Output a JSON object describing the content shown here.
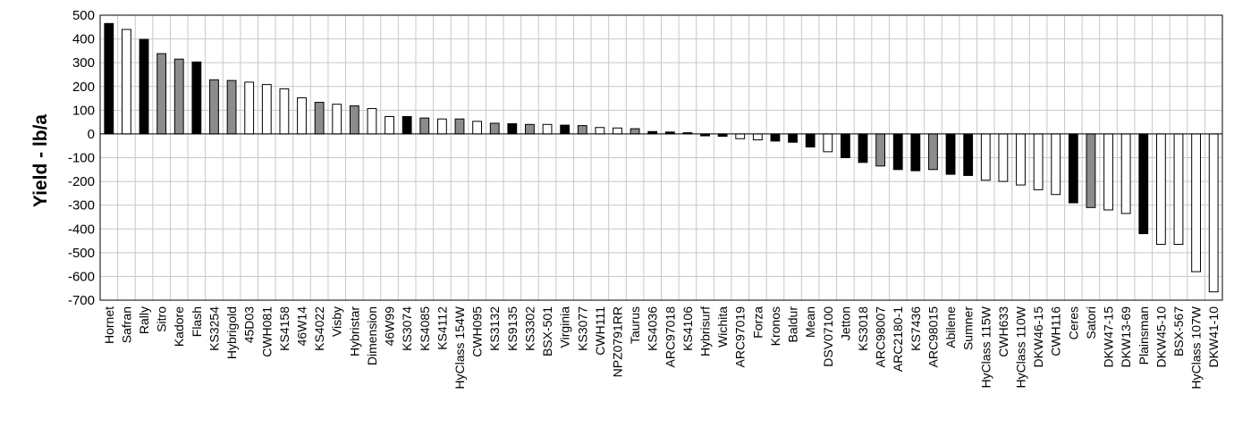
{
  "chart_data": {
    "type": "bar",
    "ylabel": "Yield - lb/a",
    "ylim": [
      -700,
      500
    ],
    "yticks": [
      500,
      400,
      300,
      200,
      100,
      0,
      -100,
      -200,
      -300,
      -400,
      -500,
      -600,
      -700
    ],
    "grid": true,
    "legend": "none",
    "colors": {
      "black": "#000000",
      "gray": "#8c8c8c",
      "white": "#ffffff",
      "edge": "#000000",
      "grid": "#c8c8c8"
    },
    "categories": [
      "Hornet",
      "Safran",
      "Rally",
      "Sitro",
      "Kadore",
      "Flash",
      "KS3254",
      "Hybrigold",
      "45D03",
      "CWH081",
      "KS4158",
      "46W14",
      "KS4022",
      "Visby",
      "Hybristar",
      "Dimension",
      "46W99",
      "KS3074",
      "KS4085",
      "KS4112",
      "HyClass 154W",
      "CWH095",
      "KS3132",
      "KS9135",
      "KS3302",
      "BSX-501",
      "Virginia",
      "KS3077",
      "CWH111",
      "NPZ0791RR",
      "Taurus",
      "KS4036",
      "ARC97018",
      "KS4106",
      "Hybrisurf",
      "Wichita",
      "ARC97019",
      "Forza",
      "Kronos",
      "Baldur",
      "Mean",
      "DSV07100",
      "Jetton",
      "KS3018",
      "ARC98007",
      "ARC2180-1",
      "KS7436",
      "ARC98015",
      "Abilene",
      "Sumner",
      "HyClass 115W",
      "CWH633",
      "HyClass 110W",
      "DKW46-15",
      "CWH116",
      "Ceres",
      "Satori",
      "DKW47-15",
      "DKW13-69",
      "Plainsman",
      "DKW45-10",
      "BSX-567",
      "HyClass 107W",
      "DKW41-10"
    ],
    "values": [
      465,
      440,
      398,
      338,
      315,
      303,
      228,
      225,
      218,
      208,
      190,
      152,
      133,
      125,
      118,
      107,
      73,
      73,
      67,
      63,
      63,
      53,
      45,
      43,
      40,
      40,
      37,
      35,
      27,
      25,
      22,
      10,
      8,
      5,
      -8,
      -10,
      -20,
      -25,
      -30,
      -35,
      -55,
      -75,
      -100,
      -120,
      -135,
      -150,
      -155,
      -150,
      -170,
      -175,
      -195,
      -200,
      -215,
      -235,
      -255,
      -290,
      -310,
      -320,
      -335,
      -420,
      -465,
      -465,
      -580,
      -665
    ],
    "bar_colors": [
      "black",
      "white",
      "black",
      "gray",
      "gray",
      "black",
      "gray",
      "gray",
      "white",
      "white",
      "white",
      "white",
      "gray",
      "white",
      "gray",
      "white",
      "white",
      "black",
      "gray",
      "white",
      "gray",
      "white",
      "gray",
      "black",
      "gray",
      "white",
      "black",
      "gray",
      "white",
      "white",
      "gray",
      "black",
      "black",
      "black",
      "black",
      "black",
      "white",
      "white",
      "black",
      "black",
      "black",
      "white",
      "black",
      "black",
      "gray",
      "black",
      "black",
      "gray",
      "black",
      "black",
      "white",
      "white",
      "white",
      "white",
      "white",
      "black",
      "gray",
      "white",
      "white",
      "black",
      "white",
      "white",
      "white",
      "white"
    ]
  }
}
